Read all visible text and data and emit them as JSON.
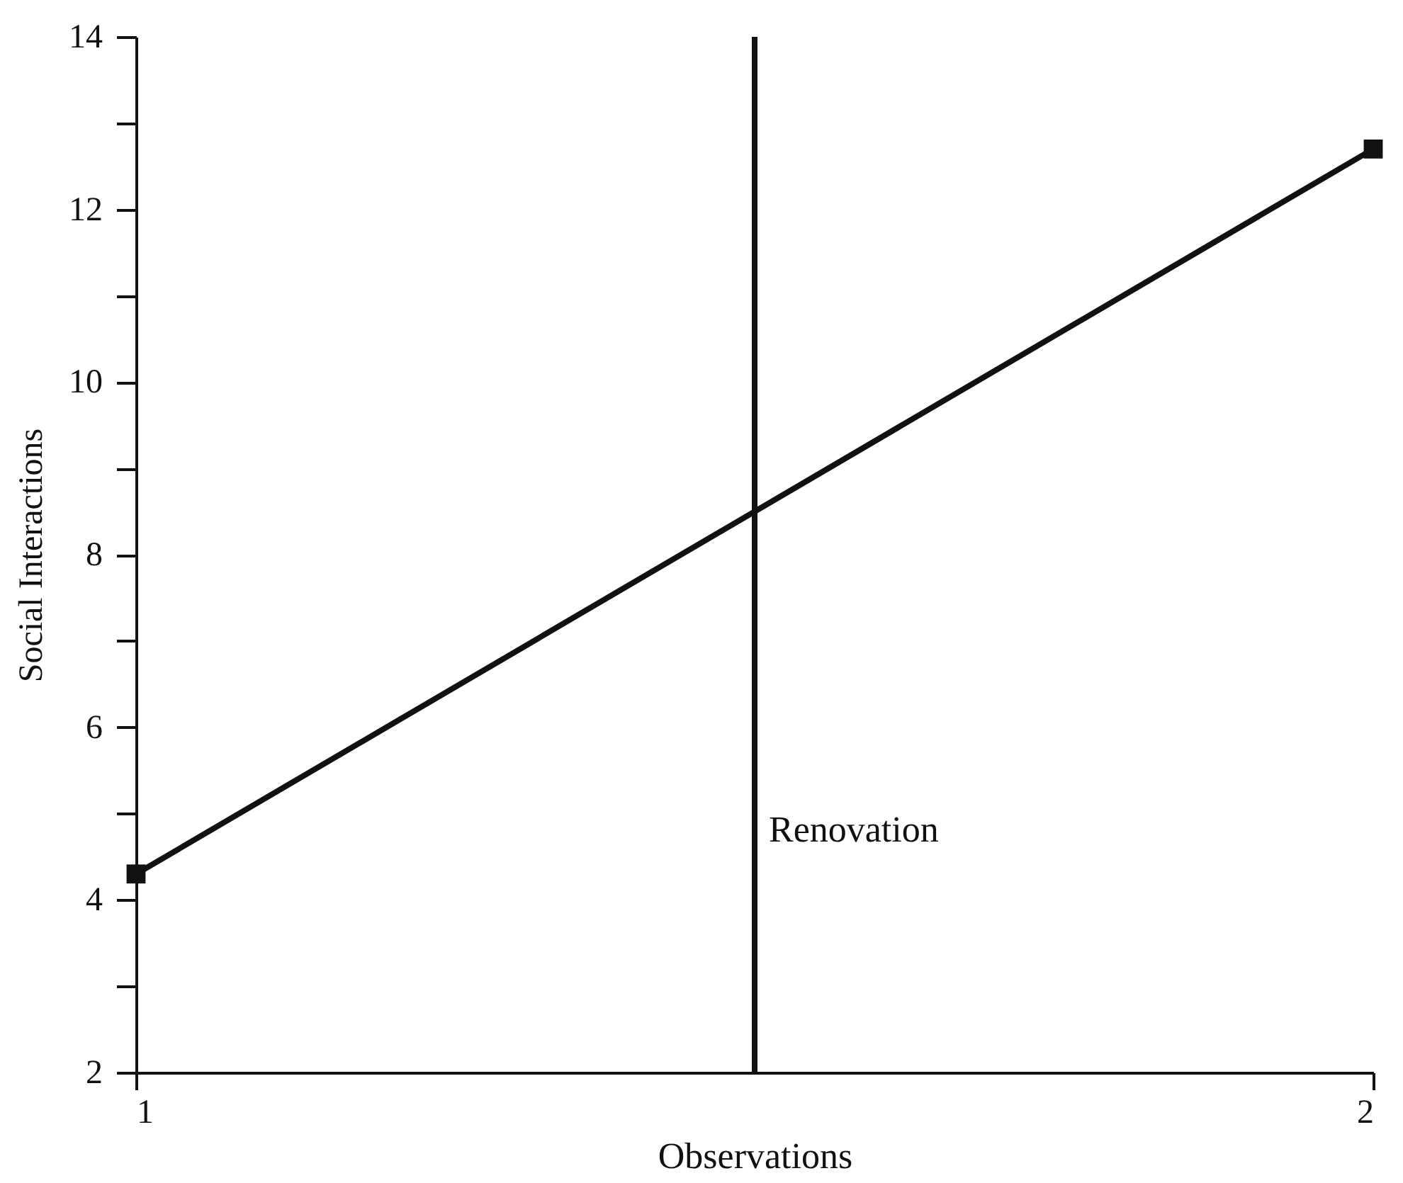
{
  "chart_data": {
    "type": "line",
    "xlabel": "Observations",
    "ylabel": "Social Interactions",
    "x": [
      1,
      2
    ],
    "series": [
      {
        "color": "#111111",
        "values": [
          4.3,
          12.7
        ]
      }
    ],
    "marker": "square",
    "line_style": "solid",
    "grid": false,
    "xlim": [
      1,
      2
    ],
    "xticks": [
      1,
      2
    ],
    "ylim": [
      2,
      14
    ],
    "yticks": [
      2,
      {
        "value": 3,
        "label": null
      },
      4,
      {
        "value": 5,
        "label": null
      },
      6,
      {
        "value": 7,
        "label": null
      },
      8,
      {
        "value": 9,
        "label": null
      },
      10,
      {
        "value": 11,
        "label": null
      },
      12,
      {
        "value": 13,
        "label": null
      },
      14
    ],
    "ref_lines": [
      {
        "axis": "x",
        "value": 1.5,
        "label": "Renovation",
        "color": "#111111",
        "line_style": "solid"
      }
    ]
  }
}
